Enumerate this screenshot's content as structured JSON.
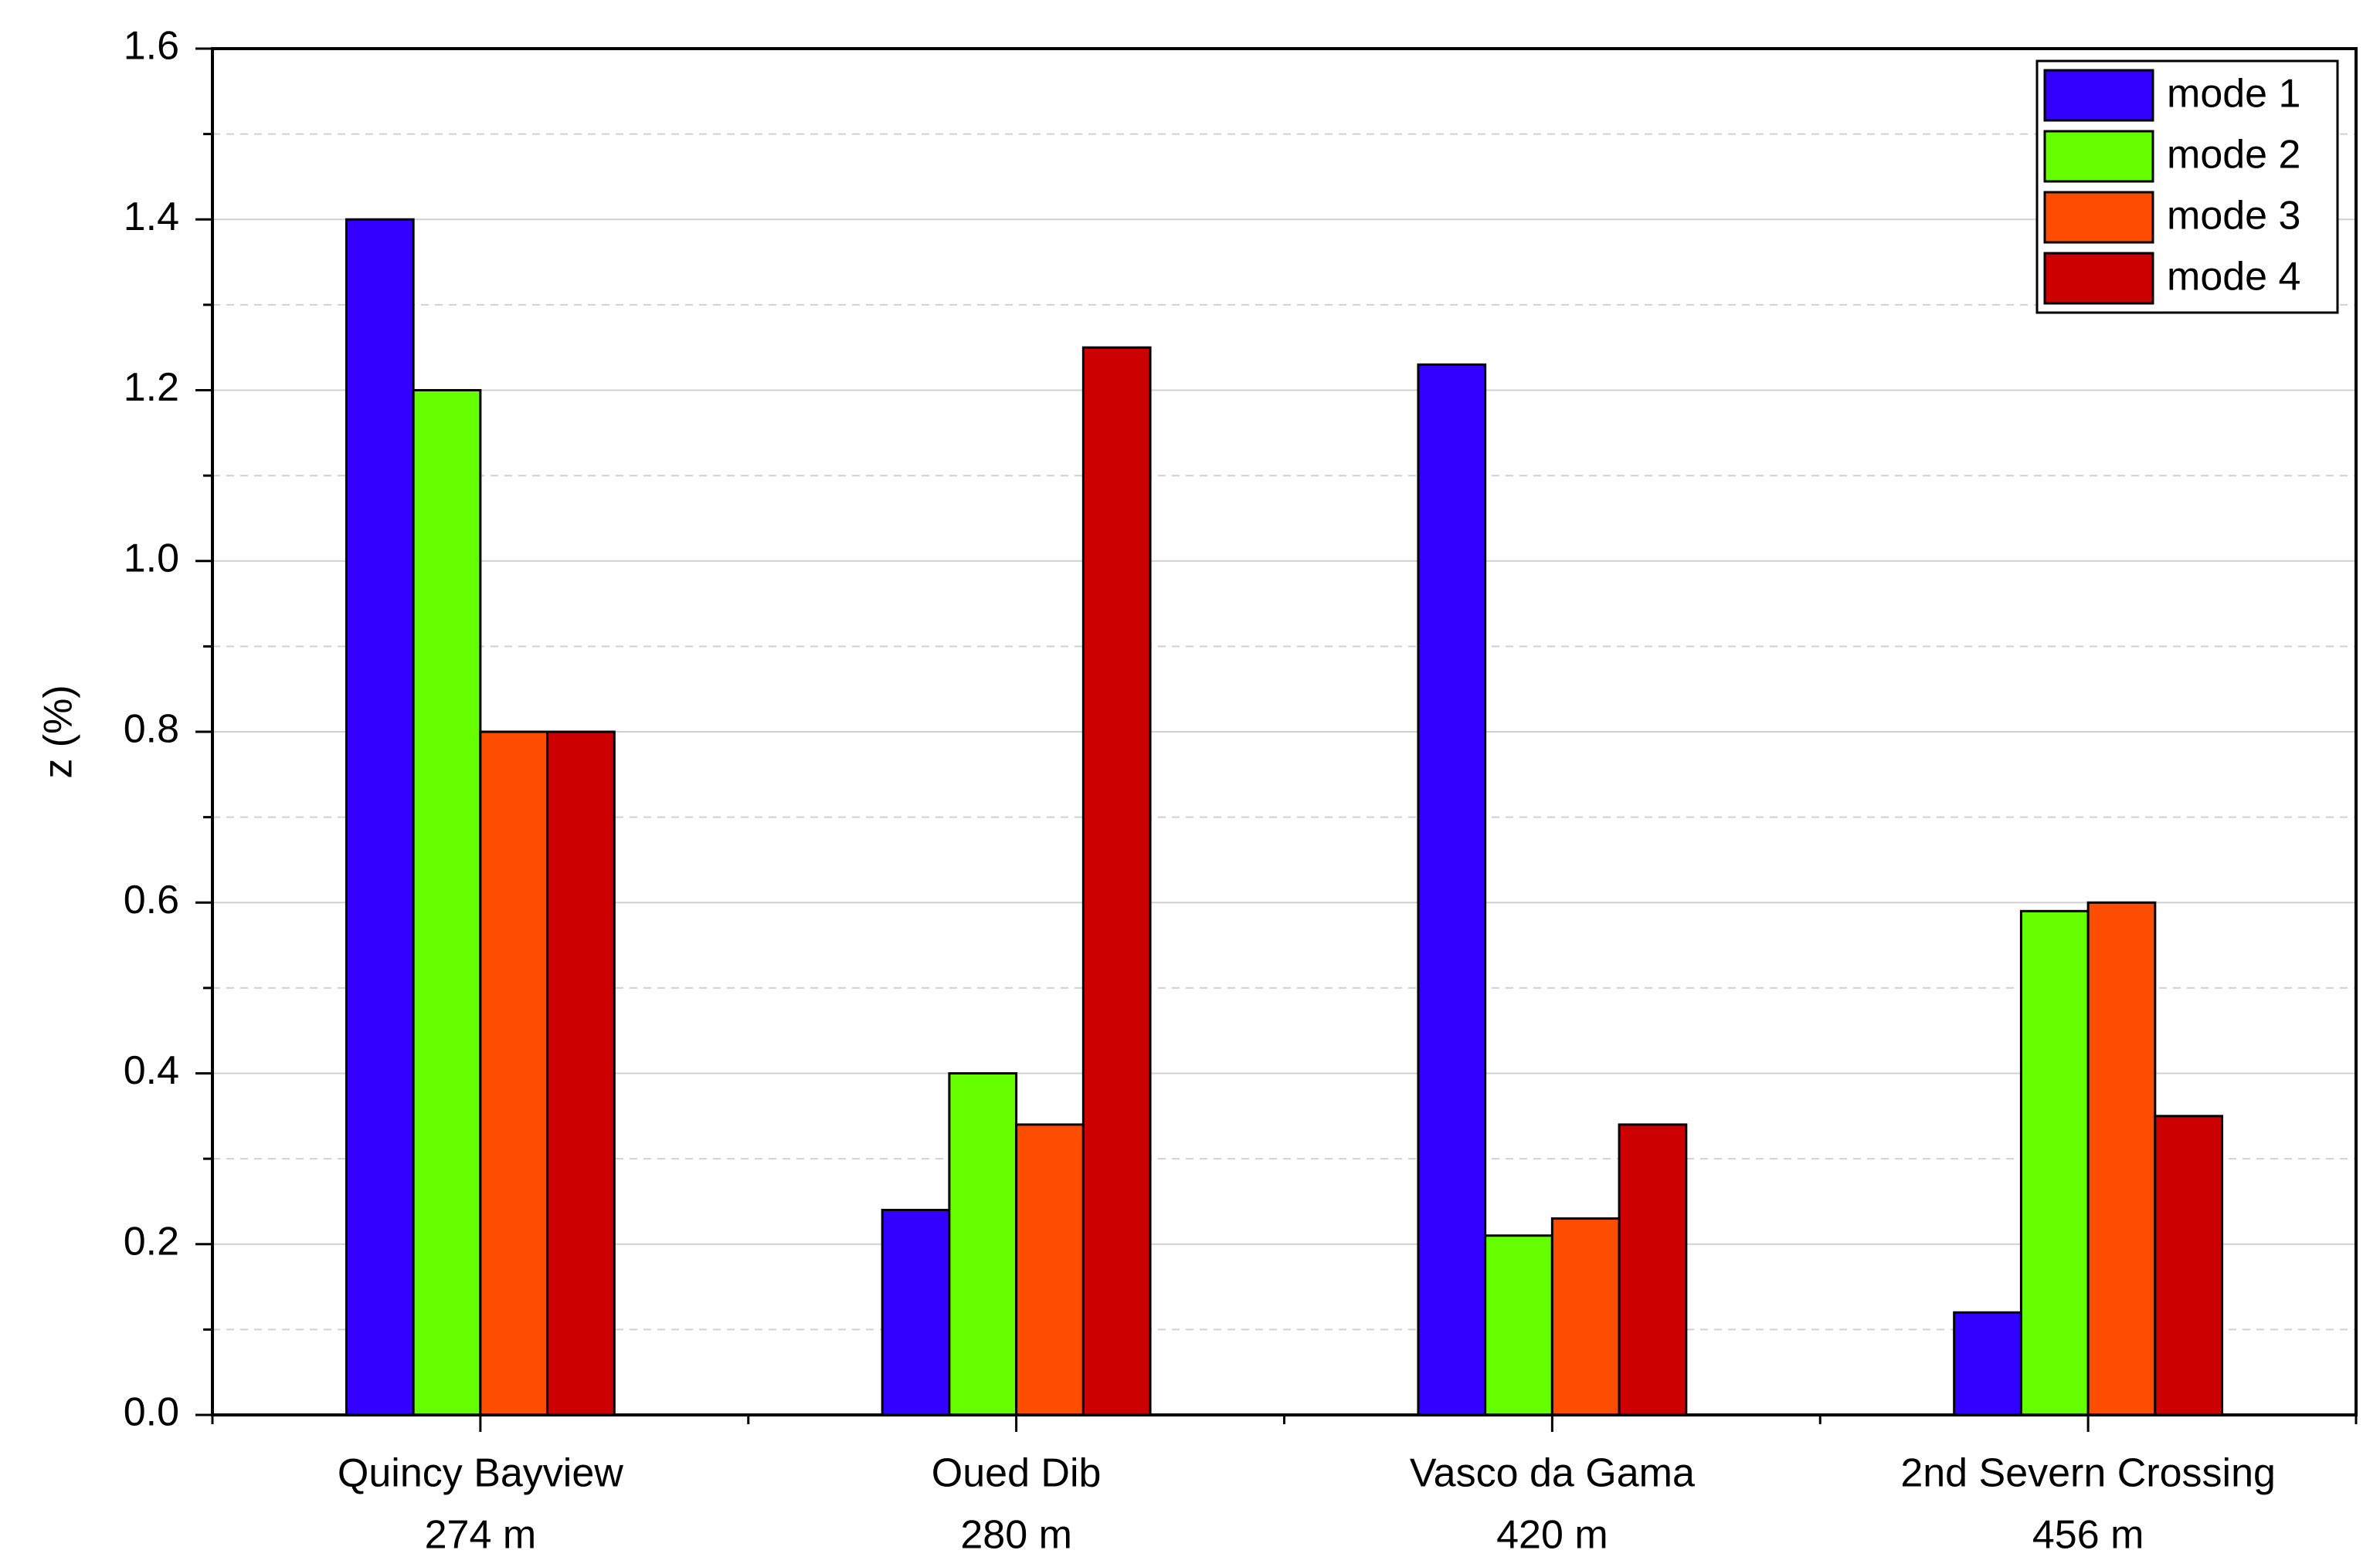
{
  "chart_data": {
    "type": "bar",
    "y_label": "z (%)",
    "categories": [
      [
        "Quincy Bayview",
        "274 m"
      ],
      [
        "Oued Dib",
        "280 m"
      ],
      [
        "Vasco da Gama",
        "420 m"
      ],
      [
        "2nd Severn Crossing",
        "456 m"
      ]
    ],
    "series": [
      {
        "name": "mode 1",
        "color": "#3300ff",
        "values": [
          1.4,
          0.24,
          1.23,
          0.12
        ]
      },
      {
        "name": "mode 2",
        "color": "#66ff00",
        "values": [
          1.2,
          0.4,
          0.21,
          0.59
        ]
      },
      {
        "name": "mode 3",
        "color": "#ff4d00",
        "values": [
          0.8,
          0.34,
          0.23,
          0.6
        ]
      },
      {
        "name": "mode 4",
        "color": "#cc0000",
        "values": [
          0.8,
          1.25,
          0.34,
          0.35
        ]
      }
    ],
    "ylim": [
      0,
      1.6
    ],
    "yticks": [
      {
        "value": 0,
        "label": "0.0"
      },
      0.2,
      0.4,
      0.6,
      0.8,
      {
        "value": 1,
        "label": "1.0"
      },
      1.2,
      1.4,
      1.6
    ],
    "minor_yticks": [
      0.1,
      0.3,
      0.5,
      0.7,
      0.9,
      1.1,
      1.3,
      1.5
    ],
    "grid": true,
    "legend": "upper right"
  }
}
